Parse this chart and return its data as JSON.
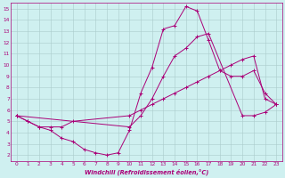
{
  "xlabel": "Windchill (Refroidissement éolien,°C)",
  "bg_color": "#cff0f0",
  "line_color": "#aa0077",
  "grid_color": "#aacccc",
  "xlim": [
    -0.5,
    23.5
  ],
  "ylim": [
    1.5,
    15.5
  ],
  "xticks": [
    0,
    1,
    2,
    3,
    4,
    5,
    6,
    7,
    8,
    9,
    10,
    11,
    12,
    13,
    14,
    15,
    16,
    17,
    18,
    19,
    20,
    21,
    22,
    23
  ],
  "yticks": [
    2,
    3,
    4,
    5,
    6,
    7,
    8,
    9,
    10,
    11,
    12,
    13,
    14,
    15
  ],
  "line1_x": [
    0,
    1,
    2,
    3,
    4,
    5,
    6,
    7,
    8,
    9,
    10,
    11,
    12,
    13,
    14,
    15,
    16,
    17,
    18,
    19,
    20,
    21,
    22,
    23
  ],
  "line1_y": [
    5.5,
    5.0,
    4.5,
    4.2,
    3.5,
    3.2,
    2.5,
    2.2,
    2.0,
    2.2,
    4.2,
    7.5,
    9.8,
    13.2,
    13.5,
    15.2,
    14.8,
    12.2,
    9.5,
    9.0,
    9.0,
    9.5,
    7.5,
    6.5
  ],
  "line2_x": [
    0,
    1,
    2,
    3,
    4,
    5,
    10,
    11,
    12,
    13,
    14,
    15,
    16,
    17,
    18,
    19,
    20,
    21,
    22,
    23
  ],
  "line2_y": [
    5.5,
    5.0,
    4.5,
    4.5,
    4.5,
    5.0,
    5.5,
    6.0,
    6.5,
    7.0,
    7.5,
    8.0,
    8.5,
    9.0,
    9.5,
    10.0,
    10.5,
    10.8,
    7.0,
    6.5
  ],
  "line3_x": [
    0,
    10,
    11,
    12,
    13,
    14,
    15,
    16,
    17,
    20,
    21,
    22,
    23
  ],
  "line3_y": [
    5.5,
    4.5,
    5.5,
    7.0,
    9.0,
    10.8,
    11.5,
    12.5,
    12.8,
    5.5,
    5.5,
    5.8,
    6.5
  ]
}
